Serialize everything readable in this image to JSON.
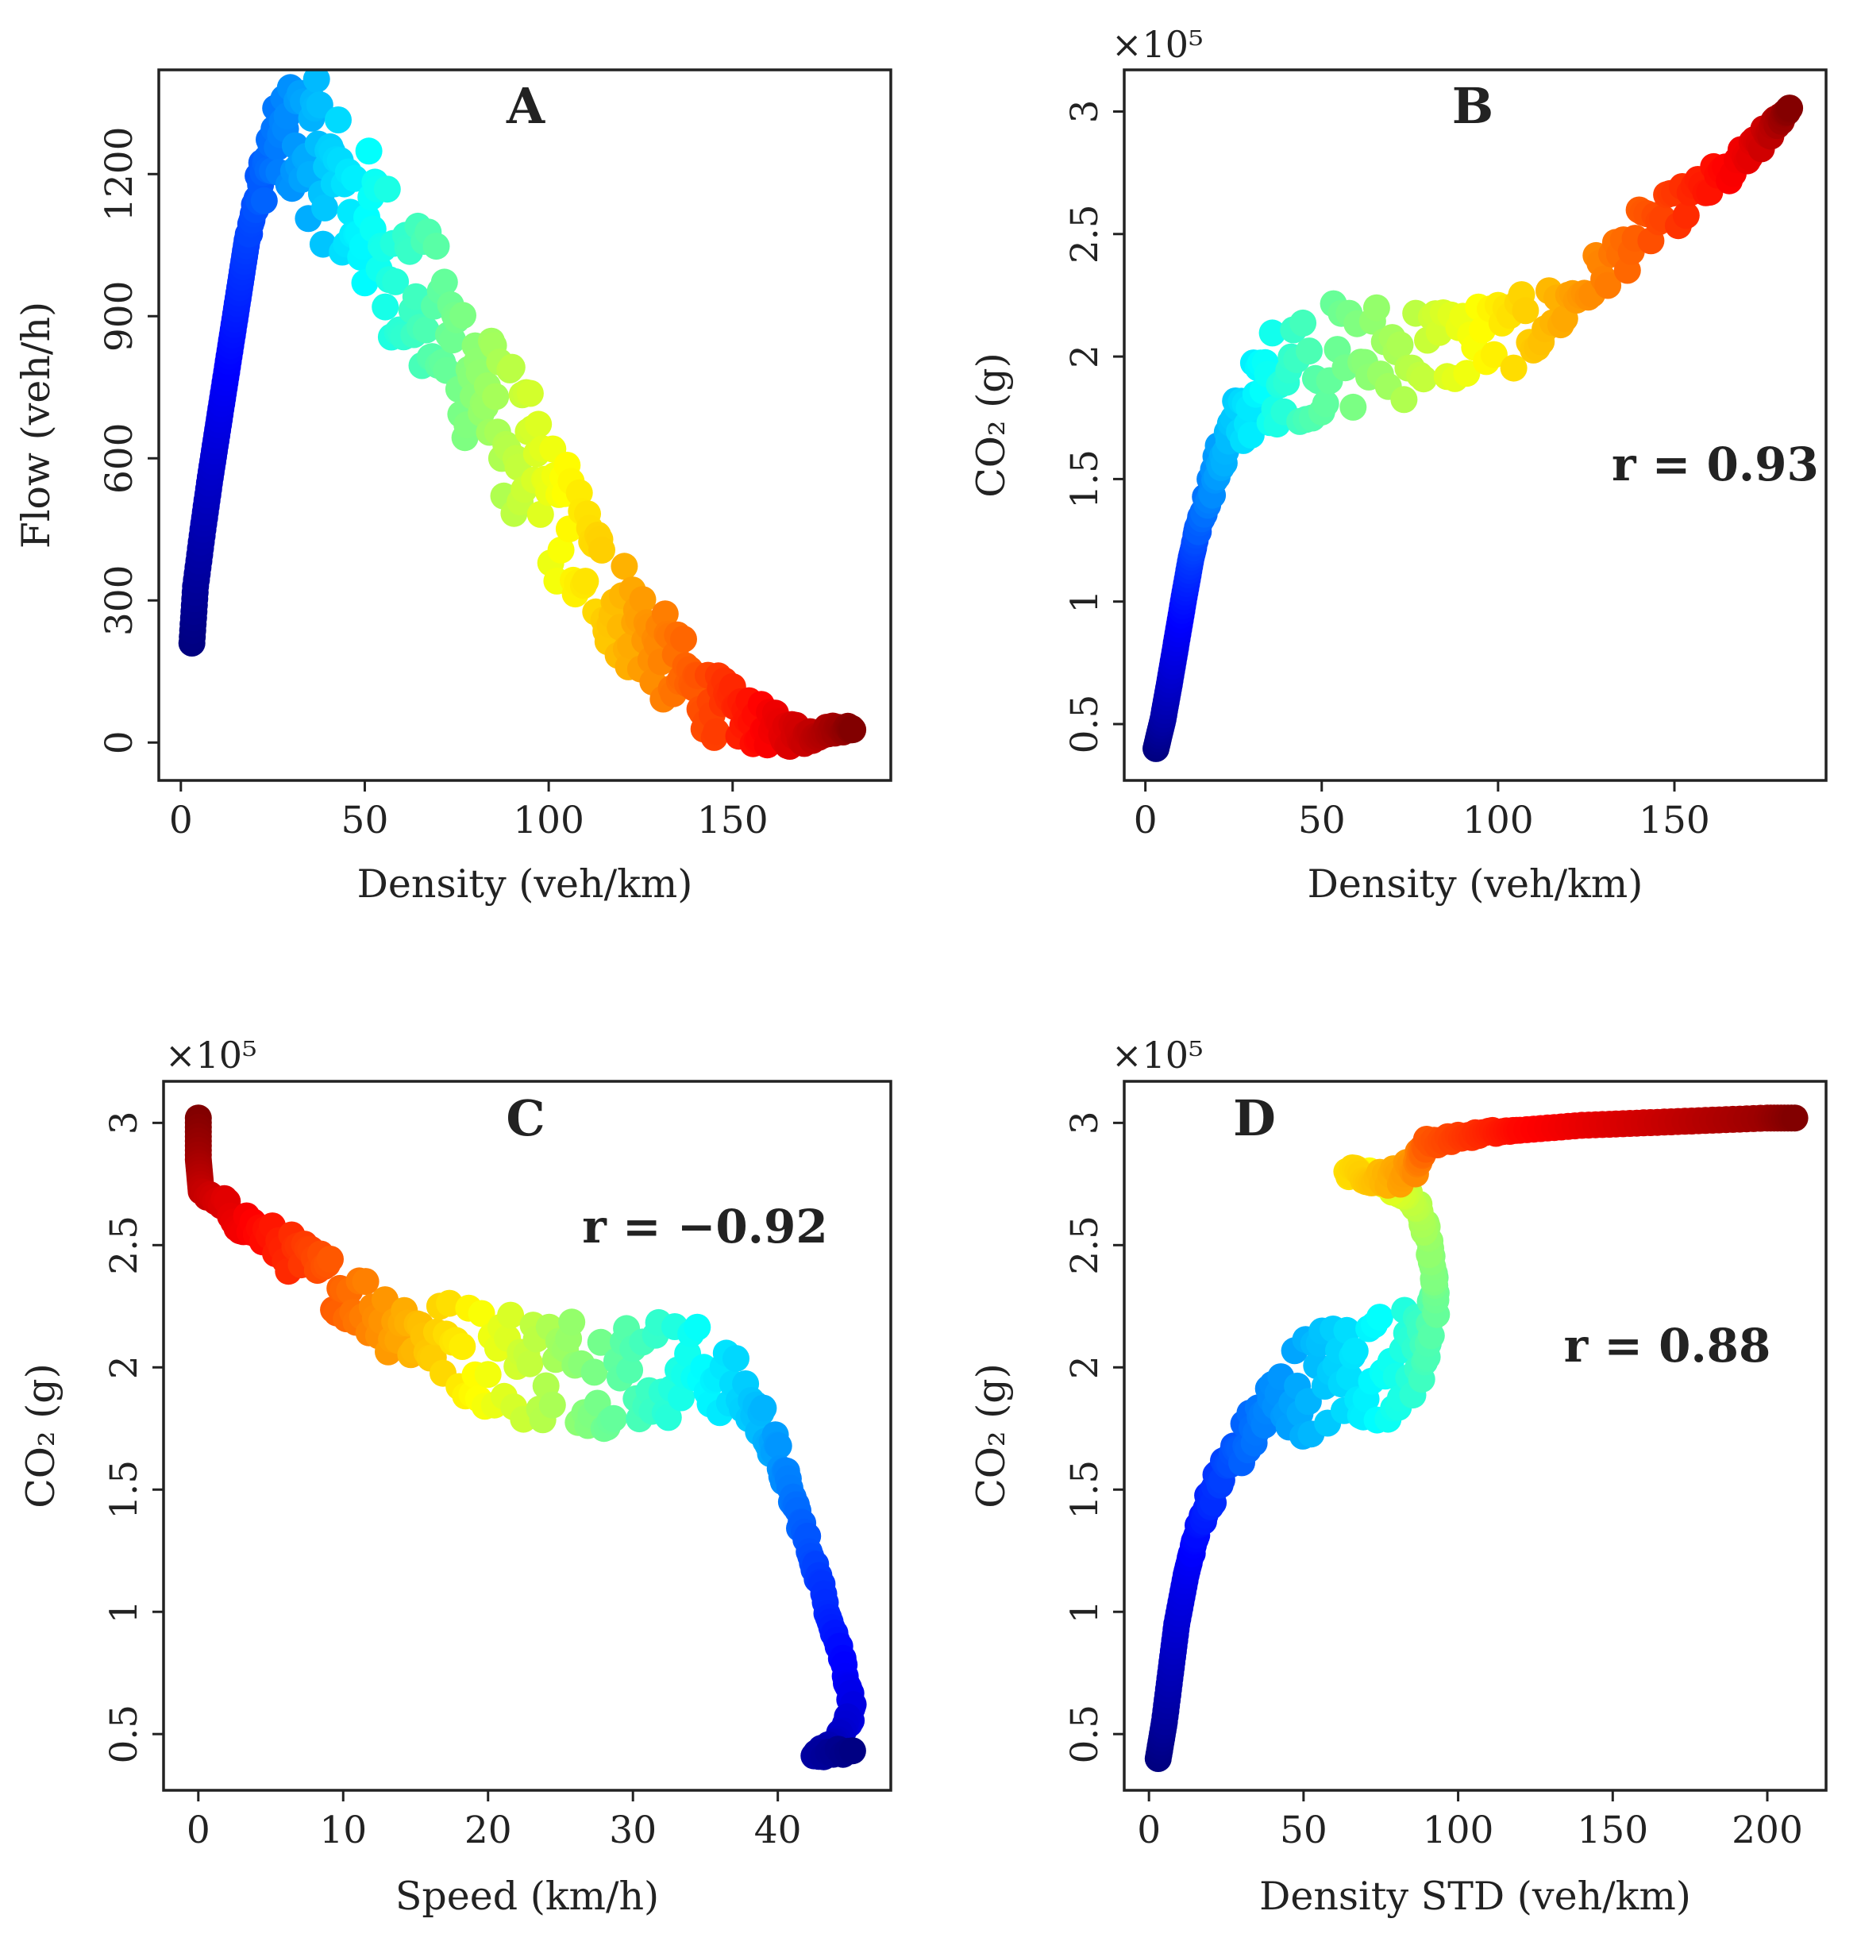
{
  "chart_data": [
    {
      "type": "scatter",
      "panel_label": "A",
      "xlabel": "Density (veh/km)",
      "ylabel": "Flow (veh/h)",
      "xlim": [
        -6,
        193
      ],
      "ylim": [
        -80,
        1420
      ],
      "xticks": [
        0,
        50,
        100,
        150
      ],
      "yticks": [
        0,
        300,
        600,
        900,
        1200
      ],
      "grid": false,
      "colormap": "jet",
      "curve": [
        [
          3,
          210
        ],
        [
          4,
          330
        ],
        [
          6,
          450
        ],
        [
          8,
          560
        ],
        [
          10,
          660
        ],
        [
          12,
          760
        ],
        [
          14,
          860
        ],
        [
          16,
          960
        ],
        [
          18,
          1060
        ],
        [
          21,
          1160
        ],
        [
          24,
          1230
        ],
        [
          28,
          1280
        ],
        [
          32,
          1270
        ],
        [
          36,
          1250
        ],
        [
          40,
          1200
        ],
        [
          45,
          1150
        ],
        [
          50,
          1100
        ],
        [
          55,
          1050
        ],
        [
          60,
          990
        ],
        [
          65,
          940
        ],
        [
          70,
          880
        ],
        [
          75,
          830
        ],
        [
          80,
          770
        ],
        [
          85,
          700
        ],
        [
          90,
          640
        ],
        [
          95,
          580
        ],
        [
          100,
          510
        ],
        [
          105,
          450
        ],
        [
          110,
          390
        ],
        [
          115,
          330
        ],
        [
          120,
          280
        ],
        [
          125,
          240
        ],
        [
          130,
          190
        ],
        [
          135,
          150
        ],
        [
          140,
          110
        ],
        [
          145,
          80
        ],
        [
          150,
          60
        ],
        [
          155,
          45
        ],
        [
          160,
          30
        ],
        [
          165,
          20
        ],
        [
          170,
          15
        ],
        [
          175,
          25
        ],
        [
          180,
          30
        ],
        [
          183,
          30
        ]
      ],
      "spread": [
        0,
        0,
        0,
        0,
        0,
        0,
        0,
        0,
        0,
        40,
        70,
        110,
        140,
        160,
        170,
        170,
        170,
        170,
        170,
        170,
        170,
        170,
        170,
        160,
        160,
        160,
        150,
        150,
        140,
        130,
        120,
        110,
        100,
        90,
        80,
        70,
        60,
        50,
        40,
        30,
        20,
        10,
        8,
        5
      ]
    },
    {
      "type": "scatter",
      "panel_label": "B",
      "xlabel": "Density (veh/km)",
      "ylabel": "CO₂ (g)",
      "y_multiplier": "×10⁵",
      "annotation": "r = 0.93",
      "xlim": [
        -6,
        193
      ],
      "ylim": [
        0.27,
        3.17
      ],
      "xticks": [
        0,
        50,
        100,
        150
      ],
      "yticks": [
        0.5,
        1.0,
        1.5,
        2.0,
        2.5,
        3.0
      ],
      "grid": false,
      "colormap": "jet",
      "curve": [
        [
          3,
          0.4
        ],
        [
          5,
          0.52
        ],
        [
          7,
          0.68
        ],
        [
          9,
          0.85
        ],
        [
          11,
          1.02
        ],
        [
          13,
          1.18
        ],
        [
          15,
          1.3
        ],
        [
          18,
          1.45
        ],
        [
          21,
          1.58
        ],
        [
          25,
          1.7
        ],
        [
          30,
          1.82
        ],
        [
          36,
          1.92
        ],
        [
          42,
          1.97
        ],
        [
          50,
          1.98
        ],
        [
          60,
          2.0
        ],
        [
          70,
          2.02
        ],
        [
          80,
          2.04
        ],
        [
          90,
          2.06
        ],
        [
          100,
          2.08
        ],
        [
          110,
          2.12
        ],
        [
          120,
          2.22
        ],
        [
          130,
          2.35
        ],
        [
          140,
          2.5
        ],
        [
          150,
          2.6
        ],
        [
          160,
          2.7
        ],
        [
          170,
          2.8
        ],
        [
          176,
          2.9
        ],
        [
          180,
          2.97
        ],
        [
          183,
          3.02
        ]
      ],
      "spread": [
        0,
        0,
        0,
        0,
        0,
        0,
        0.02,
        0.05,
        0.08,
        0.12,
        0.15,
        0.2,
        0.24,
        0.24,
        0.24,
        0.22,
        0.2,
        0.18,
        0.16,
        0.14,
        0.12,
        0.1,
        0.1,
        0.08,
        0.07,
        0.06,
        0.04,
        0.02,
        0
      ]
    },
    {
      "type": "scatter",
      "panel_label": "C",
      "xlabel": "Speed (km/h)",
      "ylabel": "CO₂ (g)",
      "y_multiplier": "×10⁵",
      "annotation": "r = −0.92",
      "xlim": [
        -2.4,
        47.8
      ],
      "ylim": [
        0.27,
        3.17
      ],
      "xticks": [
        0,
        10,
        20,
        30,
        40
      ],
      "yticks": [
        0.5,
        1.0,
        1.5,
        2.0,
        2.5,
        3.0
      ],
      "grid": false,
      "colormap": "jet",
      "curve": [
        [
          0,
          3.02
        ],
        [
          0,
          2.85
        ],
        [
          0.2,
          2.72
        ],
        [
          2,
          2.64
        ],
        [
          4,
          2.56
        ],
        [
          6,
          2.48
        ],
        [
          8,
          2.4
        ],
        [
          10,
          2.32
        ],
        [
          12,
          2.24
        ],
        [
          14,
          2.18
        ],
        [
          16,
          2.12
        ],
        [
          18,
          2.08
        ],
        [
          20,
          2.05
        ],
        [
          22,
          2.02
        ],
        [
          24,
          2.0
        ],
        [
          26,
          2.0
        ],
        [
          28,
          1.99
        ],
        [
          30,
          1.99
        ],
        [
          32,
          2.0
        ],
        [
          34,
          2.0
        ],
        [
          36,
          1.96
        ],
        [
          38,
          1.86
        ],
        [
          39.5,
          1.72
        ],
        [
          40.5,
          1.55
        ],
        [
          41.5,
          1.38
        ],
        [
          42.5,
          1.2
        ],
        [
          43.5,
          1.0
        ],
        [
          44.5,
          0.8
        ],
        [
          45.2,
          0.6
        ],
        [
          44,
          0.45
        ],
        [
          42.5,
          0.42
        ],
        [
          45.5,
          0.43
        ]
      ],
      "spread": [
        0,
        0,
        0,
        0.05,
        0.06,
        0.08,
        0.1,
        0.12,
        0.14,
        0.16,
        0.18,
        0.2,
        0.22,
        0.24,
        0.24,
        0.24,
        0.24,
        0.24,
        0.22,
        0.2,
        0.16,
        0.12,
        0.08,
        0.05,
        0.04,
        0.03,
        0.03,
        0.03,
        0.03,
        0.02,
        0.02,
        0.01
      ]
    },
    {
      "type": "scatter",
      "panel_label": "D",
      "xlabel": "Density STD (veh/km)",
      "ylabel": "CO₂ (g)",
      "y_multiplier": "×10⁵",
      "annotation": "r = 0.88",
      "xlim": [
        -8,
        219
      ],
      "ylim": [
        0.27,
        3.17
      ],
      "xticks": [
        0,
        50,
        100,
        150,
        200
      ],
      "yticks": [
        0.5,
        1.0,
        1.5,
        2.0,
        2.5,
        3.0
      ],
      "grid": false,
      "colormap": "jet",
      "curve": [
        [
          3,
          0.4
        ],
        [
          5,
          0.55
        ],
        [
          7,
          0.75
        ],
        [
          9,
          0.95
        ],
        [
          12,
          1.15
        ],
        [
          15,
          1.3
        ],
        [
          19,
          1.45
        ],
        [
          23,
          1.55
        ],
        [
          28,
          1.65
        ],
        [
          34,
          1.75
        ],
        [
          40,
          1.85
        ],
        [
          48,
          1.92
        ],
        [
          56,
          1.95
        ],
        [
          64,
          1.98
        ],
        [
          72,
          2.0
        ],
        [
          80,
          2.02
        ],
        [
          86,
          2.06
        ],
        [
          90,
          2.12
        ],
        [
          93,
          2.25
        ],
        [
          92,
          2.4
        ],
        [
          90,
          2.55
        ],
        [
          87,
          2.65
        ],
        [
          82,
          2.72
        ],
        [
          76,
          2.76
        ],
        [
          70,
          2.79
        ],
        [
          64,
          2.8
        ],
        [
          72,
          2.78
        ],
        [
          80,
          2.78
        ],
        [
          86,
          2.82
        ],
        [
          88,
          2.88
        ],
        [
          90,
          2.92
        ],
        [
          100,
          2.94
        ],
        [
          110,
          2.96
        ],
        [
          120,
          2.97
        ],
        [
          140,
          2.99
        ],
        [
          160,
          3.0
        ],
        [
          180,
          3.01
        ],
        [
          200,
          3.02
        ],
        [
          210,
          3.02
        ]
      ],
      "spread": [
        0,
        0,
        0,
        0,
        0,
        0.02,
        0.04,
        0.06,
        0.08,
        0.1,
        0.14,
        0.2,
        0.24,
        0.24,
        0.24,
        0.22,
        0.2,
        0.14,
        0.08,
        0.05,
        0.04,
        0.03,
        0.03,
        0.03,
        0.02,
        0.02,
        0.03,
        0.04,
        0.04,
        0.03,
        0.02,
        0.01,
        0.01,
        0,
        0,
        0,
        0,
        0,
        0
      ]
    }
  ]
}
